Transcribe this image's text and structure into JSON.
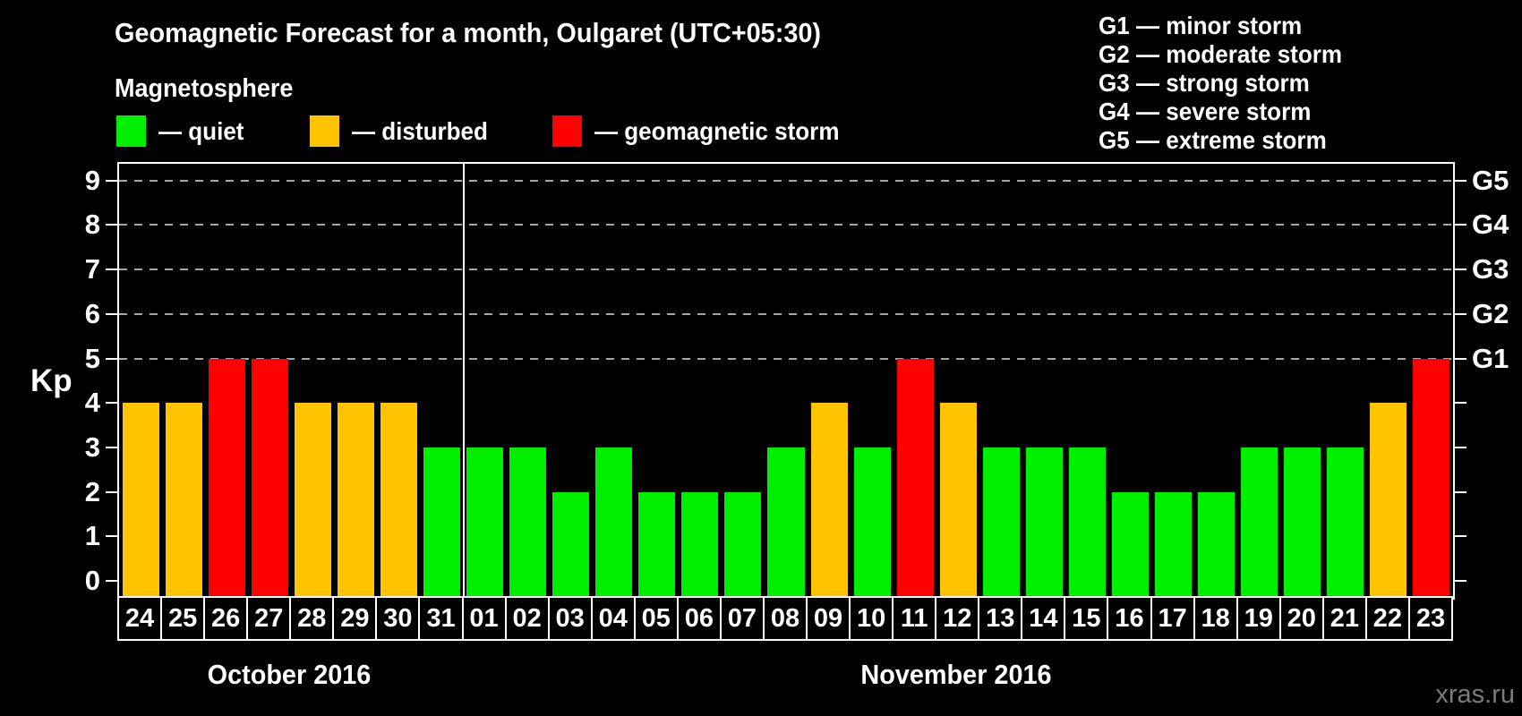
{
  "header": {
    "title": "Geomagnetic Forecast for a month, Oulgaret (UTC+05:30)",
    "subtitle": "Magnetosphere"
  },
  "legend": {
    "items": [
      {
        "label": "— quiet",
        "status": "quiet",
        "color": "#00ee00"
      },
      {
        "label": "— disturbed",
        "status": "disturbed",
        "color": "#ffc300"
      },
      {
        "label": "— geomagnetic storm",
        "status": "storm",
        "color": "#ff0000"
      }
    ]
  },
  "g_legend": {
    "items": [
      "G1 — minor storm",
      "G2 — moderate storm",
      "G3 — strong storm",
      "G4 — severe storm",
      "G5 — extreme storm"
    ]
  },
  "axes": {
    "y_label": "Kp",
    "y_ticks": [
      0,
      1,
      2,
      3,
      4,
      5,
      6,
      7,
      8,
      9
    ],
    "right_axis_labels": [
      {
        "kp": 5,
        "label": "G1"
      },
      {
        "kp": 6,
        "label": "G2"
      },
      {
        "kp": 7,
        "label": "G3"
      },
      {
        "kp": 8,
        "label": "G4"
      },
      {
        "kp": 9,
        "label": "G5"
      }
    ]
  },
  "months": [
    {
      "label": "October 2016",
      "day_count": 8
    },
    {
      "label": "November 2016",
      "day_count": 23
    }
  ],
  "watermark": "xras.ru",
  "chart_data": {
    "type": "bar",
    "title": "Geomagnetic Forecast for a month, Oulgaret (UTC+05:30)",
    "categories": [
      "24",
      "25",
      "26",
      "27",
      "28",
      "29",
      "30",
      "31",
      "01",
      "02",
      "03",
      "04",
      "05",
      "06",
      "07",
      "08",
      "09",
      "10",
      "11",
      "12",
      "13",
      "14",
      "15",
      "16",
      "17",
      "18",
      "19",
      "20",
      "21",
      "22",
      "23"
    ],
    "values": [
      4,
      4,
      5,
      5,
      4,
      4,
      4,
      3,
      3,
      3,
      2,
      3,
      2,
      2,
      2,
      3,
      4,
      3,
      5,
      4,
      3,
      3,
      3,
      2,
      2,
      2,
      3,
      3,
      3,
      4,
      5
    ],
    "statuses": [
      "disturbed",
      "disturbed",
      "storm",
      "storm",
      "disturbed",
      "disturbed",
      "disturbed",
      "quiet",
      "quiet",
      "quiet",
      "quiet",
      "quiet",
      "quiet",
      "quiet",
      "quiet",
      "quiet",
      "disturbed",
      "quiet",
      "storm",
      "disturbed",
      "quiet",
      "quiet",
      "quiet",
      "quiet",
      "quiet",
      "quiet",
      "quiet",
      "quiet",
      "quiet",
      "disturbed",
      "storm"
    ],
    "status_colors": {
      "quiet": "#00ee00",
      "disturbed": "#ffc300",
      "storm": "#ff0000"
    },
    "xlabel": "",
    "ylabel": "Kp",
    "ylim": [
      -0.4,
      9.4
    ],
    "y_ticks": [
      0,
      1,
      2,
      3,
      4,
      5,
      6,
      7,
      8,
      9
    ],
    "gridlines_at": [
      5,
      6,
      7,
      8,
      9
    ],
    "right_axis": {
      "5": "G1",
      "6": "G2",
      "7": "G3",
      "8": "G4",
      "9": "G5"
    },
    "month_separator_after_index": 7,
    "legend_position": "top",
    "grid": "dashed horizontal at G-storm levels only"
  }
}
